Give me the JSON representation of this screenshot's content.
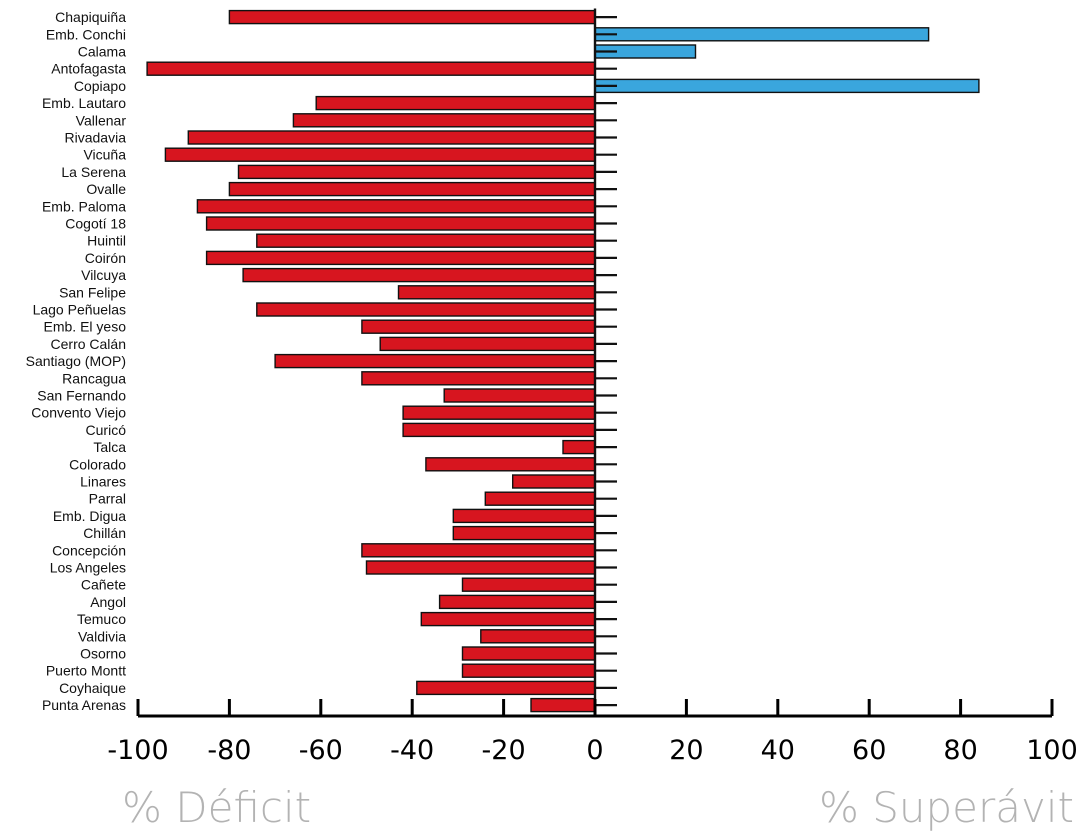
{
  "chart_data": {
    "type": "bar",
    "orientation": "horizontal",
    "categories": [
      "Chapiquiña",
      "Emb. Conchi",
      "Calama",
      "Antofagasta",
      "Copiapo",
      "Emb. Lautaro",
      "Vallenar",
      "Rivadavia",
      "Vicuña",
      "La Serena",
      "Ovalle",
      "Emb. Paloma",
      "Cogotí 18",
      "Huintil",
      "Coirón",
      "Vilcuya",
      "San Felipe",
      "Lago Peñuelas",
      "Emb. El yeso",
      "Cerro Calán",
      "Santiago (MOP)",
      "Rancagua",
      "San Fernando",
      "Convento Viejo",
      "Curicó",
      "Talca",
      "Colorado",
      "Linares",
      "Parral",
      "Emb. Digua",
      "Chillán",
      "Concepción",
      "Los Angeles",
      "Cañete",
      "Angol",
      "Temuco",
      "Valdivia",
      "Osorno",
      "Puerto Montt",
      "Coyhaique",
      "Punta Arenas"
    ],
    "values": [
      -80,
      73,
      22,
      -98,
      84,
      -61,
      -66,
      -89,
      -94,
      -78,
      -80,
      -87,
      -85,
      -74,
      -85,
      -77,
      -43,
      -74,
      -51,
      -47,
      -70,
      -51,
      -33,
      -42,
      -42,
      -7,
      -37,
      -18,
      -24,
      -31,
      -31,
      -51,
      -50,
      -29,
      -34,
      -38,
      -25,
      -29,
      -29,
      -39,
      -14
    ],
    "xlim": [
      -100,
      100
    ],
    "xticks": [
      "-100",
      "-80",
      "-60",
      "-40",
      "-20",
      "0",
      "20",
      "40",
      "60",
      "80",
      "100"
    ],
    "xtick_values": [
      -100,
      -80,
      -60,
      -40,
      -20,
      0,
      20,
      40,
      60,
      80,
      100
    ],
    "left_label": "% Déficit",
    "right_label": "% Superávit",
    "colors": {
      "deficit": "#d7151f",
      "surplus": "#3aa6dd",
      "outline": "#111111",
      "side_label": "#b3b3b3"
    },
    "grid": false,
    "legend": "none"
  }
}
